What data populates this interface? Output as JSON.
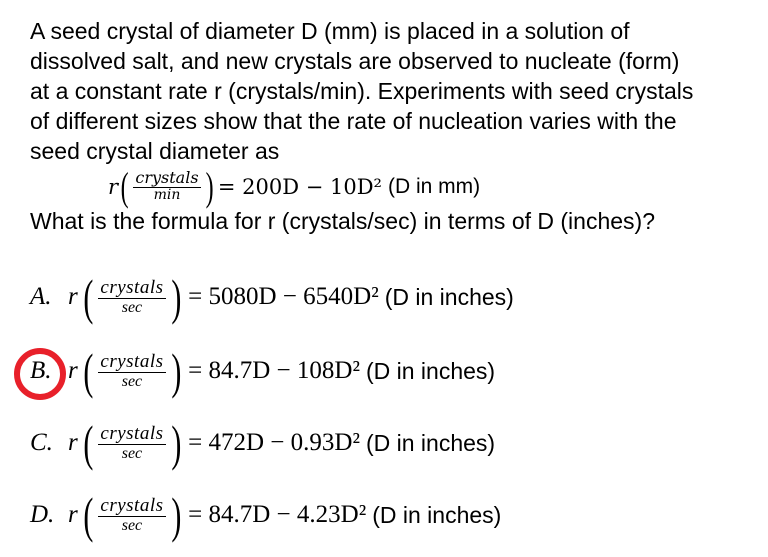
{
  "question": {
    "lines": [
      "A seed crystal of diameter D (mm) is placed in a solution of",
      "dissolved salt, and new crystals are observed to nucleate (form)",
      "at a constant rate r (crystals/min). Experiments with seed crystals",
      "of different sizes show that the rate of nucleation varies with the",
      "seed crystal diameter as"
    ],
    "equation": {
      "lhs": "r",
      "num": "crystals",
      "den": "min",
      "rhs": "= 200D − 10D²",
      "unit": "(D in mm)"
    },
    "prompt": "What is the formula for r (crystals/sec) in terms of D (inches)?"
  },
  "options": [
    {
      "letter": "A.",
      "lhs": "r",
      "num": "crystals",
      "den": "sec",
      "rhs": "= 5080D − 6540D²",
      "unit": "(D in inches)"
    },
    {
      "letter": "B.",
      "lhs": "r",
      "num": "crystals",
      "den": "sec",
      "rhs": "= 84.7D − 108D²",
      "unit": "(D in inches)"
    },
    {
      "letter": "C.",
      "lhs": "r",
      "num": "crystals",
      "den": "sec",
      "rhs": "= 472D − 0.93D²",
      "unit": "(D in inches)"
    },
    {
      "letter": "D.",
      "lhs": "r",
      "num": "crystals",
      "den": "sec",
      "rhs": "= 84.7D − 4.23D²",
      "unit": "(D in inches)"
    }
  ],
  "selected_option": "B.",
  "highlight_color": "#e8202a"
}
